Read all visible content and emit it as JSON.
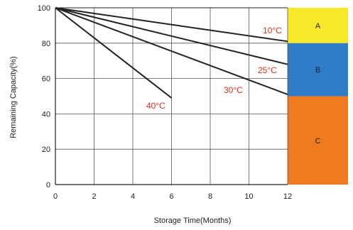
{
  "chart_data": {
    "type": "line",
    "title": "",
    "xlabel": "Storage Time(Months)",
    "ylabel": "Remaining Capacity(%)",
    "xlim": [
      0,
      12
    ],
    "ylim": [
      0,
      100
    ],
    "x_ticks": [
      0,
      2,
      4,
      6,
      8,
      10,
      12
    ],
    "y_ticks": [
      0,
      20,
      40,
      60,
      80,
      100
    ],
    "grid": true,
    "series": [
      {
        "name": "10°C",
        "label_main": "10",
        "label_unit": "°C",
        "x": [
          0,
          12
        ],
        "y": [
          100,
          81
        ]
      },
      {
        "name": "25°C",
        "label_main": "25",
        "label_unit": "°C",
        "x": [
          0,
          12
        ],
        "y": [
          100,
          68
        ]
      },
      {
        "name": "30°C",
        "label_main": "30",
        "label_unit": "°C",
        "x": [
          0,
          12
        ],
        "y": [
          100,
          51
        ]
      },
      {
        "name": "40°C",
        "label_main": "40",
        "label_unit": "°C",
        "x": [
          0,
          6
        ],
        "y": [
          100,
          49
        ]
      }
    ],
    "zones": [
      {
        "label": "A",
        "y_from": 80,
        "y_to": 100,
        "color": "#F7E92A"
      },
      {
        "label": "B",
        "y_from": 50,
        "y_to": 80,
        "color": "#2F7DC8"
      },
      {
        "label": "C",
        "y_from": 0,
        "y_to": 50,
        "color": "#F07A20"
      }
    ],
    "colors": {
      "line": "#222222",
      "grid": "#555555",
      "series_label": "#E0301E",
      "axis_text": "#222222"
    }
  }
}
